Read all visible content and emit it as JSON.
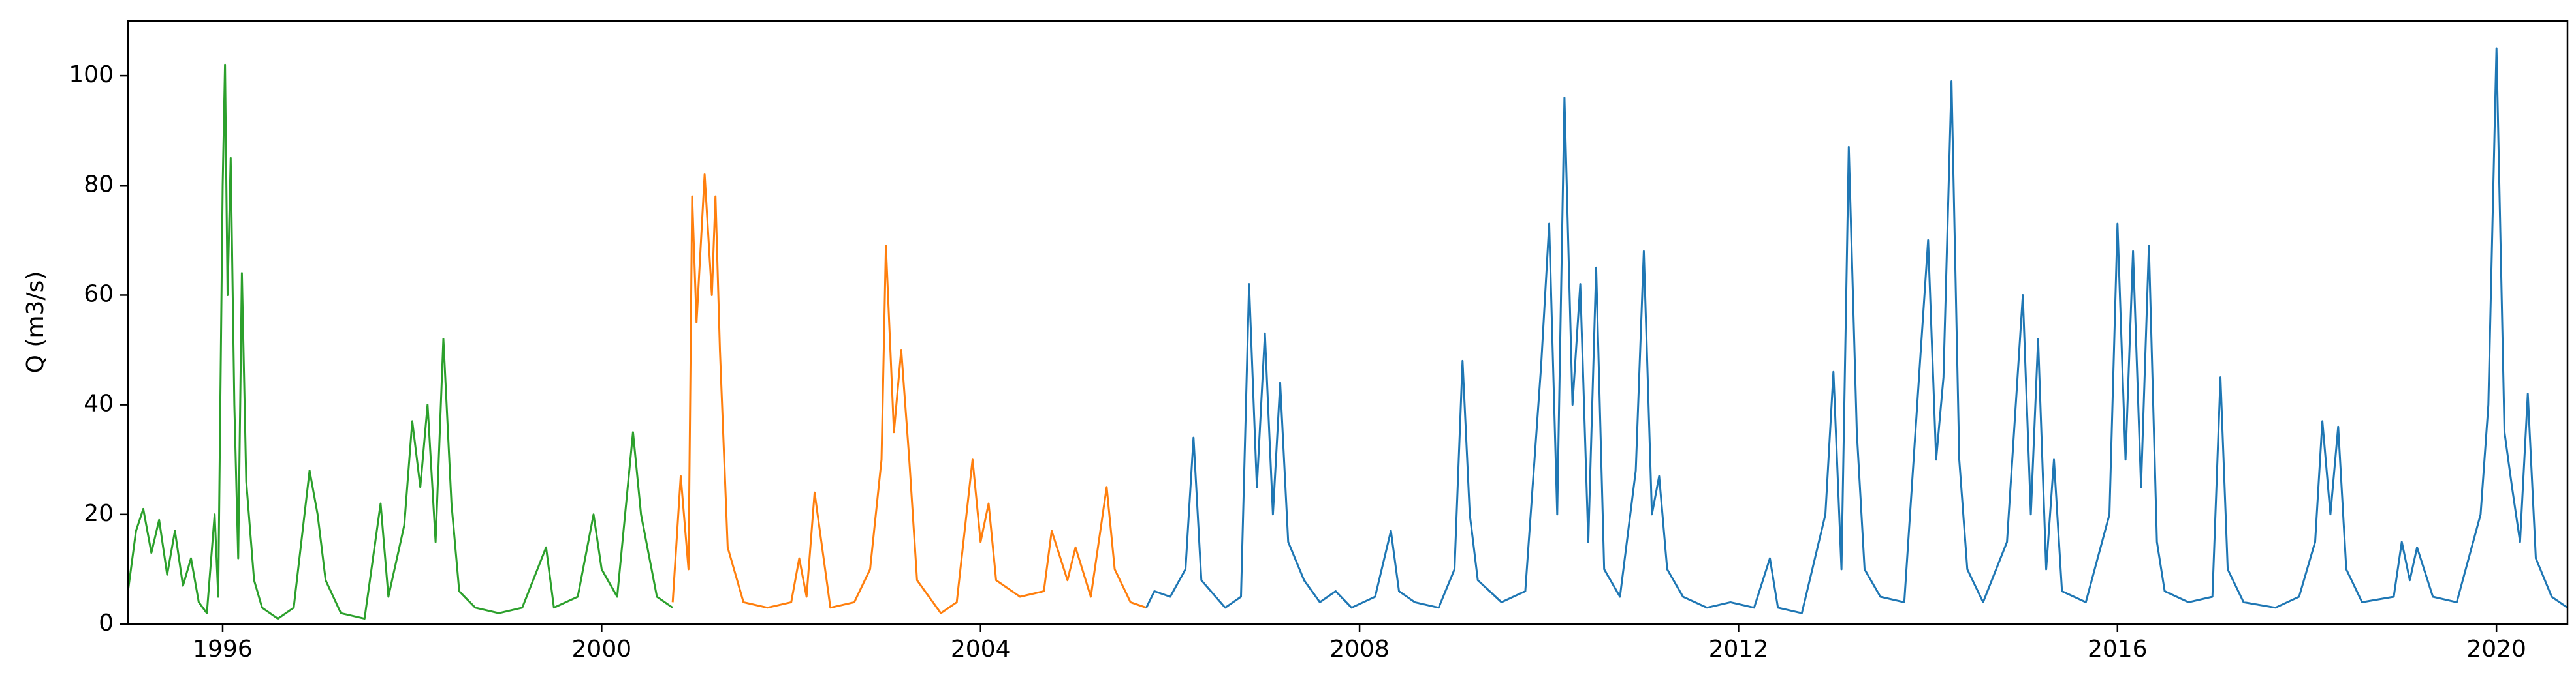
{
  "chart_data": {
    "type": "line",
    "title": "",
    "xlabel": "",
    "ylabel": "Q (m3/s)",
    "xlim": [
      "1995-01-01",
      "2020-10-01"
    ],
    "ylim": [
      0,
      110
    ],
    "xticks": [
      "1996",
      "2000",
      "2004",
      "2008",
      "2012",
      "2016",
      "2020"
    ],
    "yticks": [
      0,
      20,
      40,
      60,
      80,
      100
    ],
    "grid": false,
    "legend": "none",
    "series": [
      {
        "color": "#2ca02c",
        "points": [
          [
            "1995-01-01",
            6
          ],
          [
            "1995-02-01",
            17
          ],
          [
            "1995-03-01",
            21
          ],
          [
            "1995-04-01",
            13
          ],
          [
            "1995-05-01",
            19
          ],
          [
            "1995-06-01",
            9
          ],
          [
            "1995-07-01",
            17
          ],
          [
            "1995-08-01",
            7
          ],
          [
            "1995-09-01",
            12
          ],
          [
            "1995-10-01",
            4
          ],
          [
            "1995-11-01",
            2
          ],
          [
            "1995-12-01",
            20
          ],
          [
            "1995-12-15",
            5
          ],
          [
            "1996-01-01",
            80
          ],
          [
            "1996-01-10",
            102
          ],
          [
            "1996-01-20",
            60
          ],
          [
            "1996-02-01",
            85
          ],
          [
            "1996-02-15",
            40
          ],
          [
            "1996-03-01",
            12
          ],
          [
            "1996-03-15",
            64
          ],
          [
            "1996-04-01",
            26
          ],
          [
            "1996-05-01",
            8
          ],
          [
            "1996-06-01",
            3
          ],
          [
            "1996-08-01",
            1
          ],
          [
            "1996-10-01",
            3
          ],
          [
            "1996-12-01",
            28
          ],
          [
            "1997-01-01",
            20
          ],
          [
            "1997-02-01",
            8
          ],
          [
            "1997-04-01",
            2
          ],
          [
            "1997-07-01",
            1
          ],
          [
            "1997-09-01",
            22
          ],
          [
            "1997-10-01",
            5
          ],
          [
            "1997-12-01",
            18
          ],
          [
            "1998-01-01",
            37
          ],
          [
            "1998-02-01",
            25
          ],
          [
            "1998-03-01",
            40
          ],
          [
            "1998-04-01",
            15
          ],
          [
            "1998-05-01",
            52
          ],
          [
            "1998-06-01",
            22
          ],
          [
            "1998-07-01",
            6
          ],
          [
            "1998-09-01",
            3
          ],
          [
            "1998-12-01",
            2
          ],
          [
            "1999-03-01",
            3
          ],
          [
            "1999-06-01",
            14
          ],
          [
            "1999-07-01",
            3
          ],
          [
            "1999-10-01",
            5
          ],
          [
            "1999-12-01",
            20
          ],
          [
            "2000-01-01",
            10
          ],
          [
            "2000-03-01",
            5
          ],
          [
            "2000-05-01",
            35
          ],
          [
            "2000-06-01",
            20
          ],
          [
            "2000-08-01",
            5
          ],
          [
            "2000-10-01",
            3
          ]
        ]
      },
      {
        "color": "#ff7f0e",
        "points": [
          [
            "2000-10-01",
            4
          ],
          [
            "2000-11-01",
            27
          ],
          [
            "2000-12-01",
            10
          ],
          [
            "2000-12-15",
            78
          ],
          [
            "2001-01-01",
            55
          ],
          [
            "2001-02-01",
            82
          ],
          [
            "2001-03-01",
            60
          ],
          [
            "2001-03-15",
            78
          ],
          [
            "2001-04-01",
            50
          ],
          [
            "2001-05-01",
            14
          ],
          [
            "2001-07-01",
            4
          ],
          [
            "2001-10-01",
            3
          ],
          [
            "2002-01-01",
            4
          ],
          [
            "2002-02-01",
            12
          ],
          [
            "2002-03-01",
            5
          ],
          [
            "2002-04-01",
            24
          ],
          [
            "2002-06-01",
            3
          ],
          [
            "2002-09-01",
            4
          ],
          [
            "2002-11-01",
            10
          ],
          [
            "2002-12-15",
            30
          ],
          [
            "2003-01-01",
            69
          ],
          [
            "2003-02-01",
            35
          ],
          [
            "2003-03-01",
            50
          ],
          [
            "2003-04-01",
            30
          ],
          [
            "2003-05-01",
            8
          ],
          [
            "2003-08-01",
            2
          ],
          [
            "2003-10-01",
            4
          ],
          [
            "2003-12-01",
            30
          ],
          [
            "2004-01-01",
            15
          ],
          [
            "2004-02-01",
            22
          ],
          [
            "2004-03-01",
            8
          ],
          [
            "2004-06-01",
            5
          ],
          [
            "2004-09-01",
            6
          ],
          [
            "2004-10-01",
            17
          ],
          [
            "2004-12-01",
            8
          ],
          [
            "2005-01-01",
            14
          ],
          [
            "2005-03-01",
            5
          ],
          [
            "2005-05-01",
            25
          ],
          [
            "2005-06-01",
            10
          ],
          [
            "2005-08-01",
            4
          ],
          [
            "2005-10-01",
            3
          ]
        ]
      },
      {
        "color": "#1f77b4",
        "points": [
          [
            "2005-10-01",
            3
          ],
          [
            "2005-11-01",
            6
          ],
          [
            "2006-01-01",
            5
          ],
          [
            "2006-03-01",
            10
          ],
          [
            "2006-04-01",
            34
          ],
          [
            "2006-05-01",
            8
          ],
          [
            "2006-08-01",
            3
          ],
          [
            "2006-10-01",
            5
          ],
          [
            "2006-11-01",
            62
          ],
          [
            "2006-12-01",
            25
          ],
          [
            "2007-01-01",
            53
          ],
          [
            "2007-02-01",
            20
          ],
          [
            "2007-03-01",
            44
          ],
          [
            "2007-04-01",
            15
          ],
          [
            "2007-06-01",
            8
          ],
          [
            "2007-08-01",
            4
          ],
          [
            "2007-10-01",
            6
          ],
          [
            "2007-12-01",
            3
          ],
          [
            "2008-03-01",
            5
          ],
          [
            "2008-05-01",
            17
          ],
          [
            "2008-06-01",
            6
          ],
          [
            "2008-08-01",
            4
          ],
          [
            "2008-11-01",
            3
          ],
          [
            "2009-01-01",
            10
          ],
          [
            "2009-02-01",
            48
          ],
          [
            "2009-03-01",
            20
          ],
          [
            "2009-04-01",
            8
          ],
          [
            "2009-07-01",
            4
          ],
          [
            "2009-10-01",
            6
          ],
          [
            "2009-12-01",
            47
          ],
          [
            "2010-01-01",
            73
          ],
          [
            "2010-02-01",
            20
          ],
          [
            "2010-03-01",
            96
          ],
          [
            "2010-04-01",
            40
          ],
          [
            "2010-05-01",
            62
          ],
          [
            "2010-06-01",
            15
          ],
          [
            "2010-07-01",
            65
          ],
          [
            "2010-08-01",
            10
          ],
          [
            "2010-10-01",
            5
          ],
          [
            "2010-12-01",
            28
          ],
          [
            "2011-01-01",
            68
          ],
          [
            "2011-02-01",
            20
          ],
          [
            "2011-03-01",
            27
          ],
          [
            "2011-04-01",
            10
          ],
          [
            "2011-06-01",
            5
          ],
          [
            "2011-09-01",
            3
          ],
          [
            "2011-12-01",
            4
          ],
          [
            "2012-03-01",
            3
          ],
          [
            "2012-05-01",
            12
          ],
          [
            "2012-06-01",
            3
          ],
          [
            "2012-09-01",
            2
          ],
          [
            "2012-12-01",
            20
          ],
          [
            "2013-01-01",
            46
          ],
          [
            "2013-02-01",
            10
          ],
          [
            "2013-03-01",
            87
          ],
          [
            "2013-04-01",
            35
          ],
          [
            "2013-05-01",
            10
          ],
          [
            "2013-07-01",
            5
          ],
          [
            "2013-10-01",
            4
          ],
          [
            "2013-12-01",
            48
          ],
          [
            "2014-01-01",
            70
          ],
          [
            "2014-02-01",
            30
          ],
          [
            "2014-03-01",
            45
          ],
          [
            "2014-04-01",
            99
          ],
          [
            "2014-05-01",
            30
          ],
          [
            "2014-06-01",
            10
          ],
          [
            "2014-08-01",
            4
          ],
          [
            "2014-11-01",
            15
          ],
          [
            "2015-01-01",
            60
          ],
          [
            "2015-02-01",
            20
          ],
          [
            "2015-03-01",
            52
          ],
          [
            "2015-04-01",
            10
          ],
          [
            "2015-05-01",
            30
          ],
          [
            "2015-06-01",
            6
          ],
          [
            "2015-09-01",
            4
          ],
          [
            "2015-12-01",
            20
          ],
          [
            "2016-01-01",
            73
          ],
          [
            "2016-02-01",
            30
          ],
          [
            "2016-03-01",
            68
          ],
          [
            "2016-04-01",
            25
          ],
          [
            "2016-05-01",
            69
          ],
          [
            "2016-06-01",
            15
          ],
          [
            "2016-07-01",
            6
          ],
          [
            "2016-10-01",
            4
          ],
          [
            "2017-01-01",
            5
          ],
          [
            "2017-02-01",
            45
          ],
          [
            "2017-03-01",
            10
          ],
          [
            "2017-05-01",
            4
          ],
          [
            "2017-09-01",
            3
          ],
          [
            "2017-12-01",
            5
          ],
          [
            "2018-02-01",
            15
          ],
          [
            "2018-03-01",
            37
          ],
          [
            "2018-04-01",
            20
          ],
          [
            "2018-05-01",
            36
          ],
          [
            "2018-06-01",
            10
          ],
          [
            "2018-08-01",
            4
          ],
          [
            "2018-12-01",
            5
          ],
          [
            "2019-01-01",
            15
          ],
          [
            "2019-02-01",
            8
          ],
          [
            "2019-03-01",
            14
          ],
          [
            "2019-05-01",
            5
          ],
          [
            "2019-08-01",
            4
          ],
          [
            "2019-11-01",
            20
          ],
          [
            "2019-12-01",
            40
          ],
          [
            "2020-01-01",
            105
          ],
          [
            "2020-02-01",
            35
          ],
          [
            "2020-03-01",
            25
          ],
          [
            "2020-04-01",
            15
          ],
          [
            "2020-05-01",
            42
          ],
          [
            "2020-06-01",
            12
          ],
          [
            "2020-08-01",
            5
          ],
          [
            "2020-10-01",
            3
          ]
        ]
      }
    ]
  }
}
